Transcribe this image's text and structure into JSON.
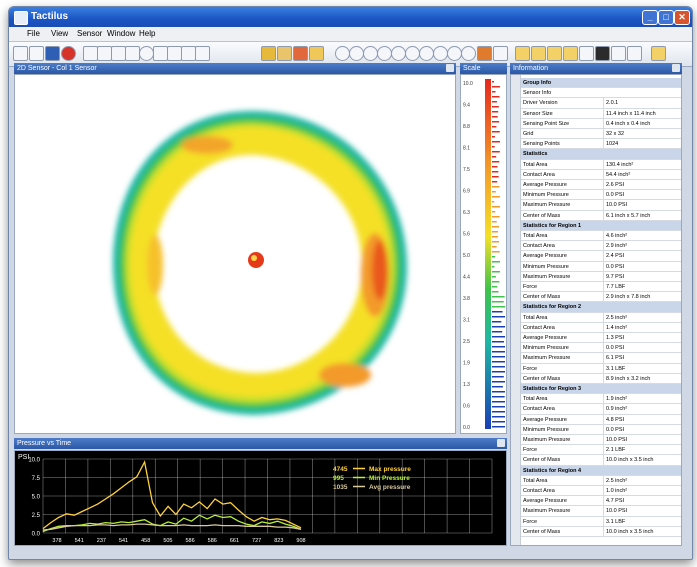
{
  "window": {
    "title": "Tactilus"
  },
  "menu": [
    "File",
    "View",
    "Sensor",
    "Window",
    "Help"
  ],
  "panels": {
    "map_title": "2D Sensor - Col 1 Sensor",
    "scale_title": "Scale",
    "info_title": "Information",
    "chart_title": "Pressure vs Time"
  },
  "info_rows": [
    {
      "section": true,
      "label": "Group Info"
    },
    {
      "label": "Sensor Info",
      "value": ""
    },
    {
      "label": "Driver Version",
      "value": "2.0.1"
    },
    {
      "label": "Sensor Size",
      "value": "11.4 inch x 11.4 inch"
    },
    {
      "label": "Sensing Point Size",
      "value": "0.4 inch x 0.4 inch"
    },
    {
      "label": "Grid",
      "value": "32 x 32"
    },
    {
      "label": "Sensing Points",
      "value": "1024"
    },
    {
      "section": true,
      "label": "Statistics"
    },
    {
      "label": "Total Area",
      "value": "130.4 inch²"
    },
    {
      "label": "Contact Area",
      "value": "54.4 inch²"
    },
    {
      "label": "Average Pressure",
      "value": "2.6 PSI"
    },
    {
      "label": "Minimum Pressure",
      "value": "0.0 PSI"
    },
    {
      "label": "Maximum Pressure",
      "value": "10.0 PSI"
    },
    {
      "label": "Center of Mass",
      "value": "6.1 inch x 5.7 inch"
    },
    {
      "section": true,
      "label": "Statistics for Region 1"
    },
    {
      "label": "Total Area",
      "value": "4.6 inch²"
    },
    {
      "label": "Contact Area",
      "value": "2.9 inch²"
    },
    {
      "label": "Average Pressure",
      "value": "2.4 PSI"
    },
    {
      "label": "Minimum Pressure",
      "value": "0.0 PSI"
    },
    {
      "label": "Maximum Pressure",
      "value": "9.7 PSI"
    },
    {
      "label": "Force",
      "value": "7.7 LBF"
    },
    {
      "label": "Center of Mass",
      "value": "2.9 inch x 7.8 inch"
    },
    {
      "section": true,
      "label": "Statistics for Region 2"
    },
    {
      "label": "Total Area",
      "value": "2.5 inch²"
    },
    {
      "label": "Contact Area",
      "value": "1.4 inch²"
    },
    {
      "label": "Average Pressure",
      "value": "1.3 PSI"
    },
    {
      "label": "Minimum Pressure",
      "value": "0.0 PSI"
    },
    {
      "label": "Maximum Pressure",
      "value": "6.1 PSI"
    },
    {
      "label": "Force",
      "value": "3.1 LBF"
    },
    {
      "label": "Center of Mass",
      "value": "8.9 inch x 3.2 inch"
    },
    {
      "section": true,
      "label": "Statistics for Region 3"
    },
    {
      "label": "Total Area",
      "value": "1.9 inch²"
    },
    {
      "label": "Contact Area",
      "value": "0.9 inch²"
    },
    {
      "label": "Average Pressure",
      "value": "4.8 PSI"
    },
    {
      "label": "Minimum Pressure",
      "value": "0.0 PSI"
    },
    {
      "label": "Maximum Pressure",
      "value": "10.0 PSI"
    },
    {
      "label": "Force",
      "value": "2.1 LBF"
    },
    {
      "label": "Center of Mass",
      "value": "10.0 inch x 3.5 inch"
    },
    {
      "section": true,
      "label": "Statistics for Region 4"
    },
    {
      "label": "Total Area",
      "value": "2.5 inch²"
    },
    {
      "label": "Contact Area",
      "value": "1.0 inch²"
    },
    {
      "label": "Average Pressure",
      "value": "4.7 PSI"
    },
    {
      "label": "Maximum Pressure",
      "value": "10.0 PSI"
    },
    {
      "label": "Force",
      "value": "3.1 LBF"
    },
    {
      "label": "Center of Mass",
      "value": "10.0 inch x 3.5 inch"
    }
  ],
  "chart_data": {
    "type": "line",
    "ylabel": "PSI",
    "yticks": [
      "10.0",
      "7.5",
      "5.0",
      "2.5",
      "0.0"
    ],
    "ylim": [
      0,
      10
    ],
    "xticks": [
      "378",
      "541",
      "237",
      "541",
      "458",
      "505",
      "586",
      "586",
      "661",
      "727",
      "823",
      "908"
    ],
    "grid": true,
    "legend_position": "top-right",
    "series": [
      {
        "name": "Max pressure",
        "legend_id": "4745",
        "color": "#ffd23a",
        "values": [
          0.6,
          1.4,
          2.1,
          2.6,
          2.4,
          2.9,
          3.4,
          3.9,
          4.6,
          5.3,
          6.1,
          6.9,
          7.6,
          9.6,
          4.1,
          2.3,
          3.6,
          2.5,
          3.9,
          3.4,
          4.2,
          3.3,
          4.6,
          3.9,
          4.1,
          3.1,
          2.2,
          1.6,
          2.1,
          1.8,
          1.9,
          1.7,
          1.2,
          0.7
        ]
      },
      {
        "name": "Min Pressure",
        "legend_id": "995",
        "color": "#b6ee3a",
        "values": [
          0.2,
          0.6,
          0.9,
          1.0,
          1.0,
          1.1,
          1.3,
          1.2,
          1.4,
          1.3,
          1.5,
          1.4,
          1.6,
          1.8,
          1.2,
          1.0,
          1.5,
          1.2,
          2.0,
          1.6,
          2.4,
          1.9,
          2.4,
          2.1,
          2.2,
          1.6,
          1.2,
          1.0,
          1.5,
          1.3,
          1.6,
          1.2,
          0.9,
          0.5
        ]
      },
      {
        "name": "Avg pressure",
        "legend_id": "1035",
        "color": "#d9c99a",
        "values": [
          0.4,
          0.5,
          0.7,
          0.9,
          1.0,
          1.0,
          1.0,
          1.1,
          1.1,
          1.0,
          1.1,
          1.1,
          1.2,
          1.2,
          1.1,
          1.0,
          1.0,
          1.0,
          1.1,
          1.0,
          1.0,
          1.0,
          1.1,
          1.0,
          1.0,
          1.0,
          0.9,
          0.9,
          0.9,
          0.9,
          0.8,
          0.8,
          0.7,
          0.5
        ]
      }
    ]
  },
  "scale_labels": [
    "10.0",
    "9.4",
    "8.8",
    "8.1",
    "7.5",
    "6.9",
    "6.3",
    "5.6",
    "5.0",
    "4.4",
    "3.8",
    "3.1",
    "2.5",
    "1.9",
    "1.3",
    "0.6",
    "0.0"
  ],
  "colors": {
    "accent": "#2a58a6",
    "chart_bg": "#000000",
    "grid": "#ffffff"
  }
}
